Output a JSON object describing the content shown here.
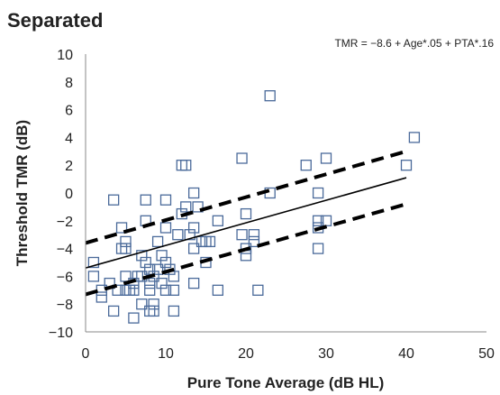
{
  "chart_data": {
    "type": "scatter",
    "title": "Separated",
    "annotation": "TMR = −8.6 + Age*.05 + PTA*.16",
    "xlabel": "Pure Tone Average (dB HL)",
    "ylabel": "Threshold TMR (dB)",
    "xlim": [
      0,
      50
    ],
    "ylim": [
      -10,
      10
    ],
    "xticks": [
      "0",
      "10",
      "20",
      "30",
      "40",
      "50"
    ],
    "yticks": [
      "−10",
      "−8",
      "−6",
      "−4",
      "−2",
      "0",
      "2",
      "4",
      "6",
      "8",
      "10"
    ],
    "grid": false,
    "marker_color": "#4a6a9a",
    "line_color": "#000000",
    "points": [
      [
        1,
        -5
      ],
      [
        1,
        -6
      ],
      [
        2,
        -7
      ],
      [
        2,
        -7.5
      ],
      [
        3,
        -6.5
      ],
      [
        3.5,
        -0.5
      ],
      [
        3.5,
        -8.5
      ],
      [
        4,
        -7
      ],
      [
        4.5,
        -2.5
      ],
      [
        4.5,
        -4
      ],
      [
        5,
        -3.5
      ],
      [
        5,
        -4
      ],
      [
        5,
        -6
      ],
      [
        5,
        -7
      ],
      [
        5.5,
        -7
      ],
      [
        6,
        -6.5
      ],
      [
        6,
        -7
      ],
      [
        6,
        -9
      ],
      [
        6.5,
        -6
      ],
      [
        7,
        -4.5
      ],
      [
        7,
        -6
      ],
      [
        7,
        -8
      ],
      [
        7.5,
        -0.5
      ],
      [
        7.5,
        -2
      ],
      [
        7.5,
        -5
      ],
      [
        8,
        -5.5
      ],
      [
        8,
        -6.5
      ],
      [
        8,
        -7
      ],
      [
        8,
        -8.5
      ],
      [
        8.5,
        -6
      ],
      [
        8.5,
        -8
      ],
      [
        8.5,
        -8.5
      ],
      [
        9,
        -3.5
      ],
      [
        9,
        -5.5
      ],
      [
        9.5,
        -4.5
      ],
      [
        9.5,
        -6.5
      ],
      [
        10,
        -0.5
      ],
      [
        10,
        -2.5
      ],
      [
        10,
        -5
      ],
      [
        10,
        -7
      ],
      [
        10.5,
        -5.5
      ],
      [
        11,
        -6
      ],
      [
        11,
        -7
      ],
      [
        11,
        -8.5
      ],
      [
        11.5,
        -3
      ],
      [
        12,
        -1.5
      ],
      [
        12,
        2
      ],
      [
        12.5,
        -1
      ],
      [
        12.5,
        2
      ],
      [
        13,
        -3
      ],
      [
        13.5,
        0
      ],
      [
        13.5,
        -2.5
      ],
      [
        13.5,
        -4
      ],
      [
        13.5,
        -6.5
      ],
      [
        14,
        -1
      ],
      [
        14.5,
        -3.5
      ],
      [
        15,
        -3.5
      ],
      [
        15,
        -5
      ],
      [
        15.5,
        -3.5
      ],
      [
        16.5,
        -2
      ],
      [
        16.5,
        -7
      ],
      [
        19.5,
        2.5
      ],
      [
        19.5,
        -3
      ],
      [
        20,
        -1.5
      ],
      [
        20,
        -4
      ],
      [
        20,
        -4.5
      ],
      [
        21,
        -3
      ],
      [
        21,
        -3.5
      ],
      [
        21.5,
        -7
      ],
      [
        23,
        7
      ],
      [
        23,
        0
      ],
      [
        27.5,
        2
      ],
      [
        29,
        -4
      ],
      [
        29,
        -2
      ],
      [
        29,
        -2.5
      ],
      [
        29,
        0
      ],
      [
        30,
        -2
      ],
      [
        30,
        2.5
      ],
      [
        40,
        2
      ],
      [
        41,
        4
      ]
    ],
    "lines": [
      {
        "style": "solid",
        "x": [
          0,
          40
        ],
        "y": [
          -5.4,
          1.1
        ]
      },
      {
        "style": "dashed",
        "x": [
          0,
          40
        ],
        "y": [
          -3.6,
          3.0
        ]
      },
      {
        "style": "dashed",
        "x": [
          0,
          40
        ],
        "y": [
          -7.3,
          -0.8
        ]
      }
    ]
  }
}
